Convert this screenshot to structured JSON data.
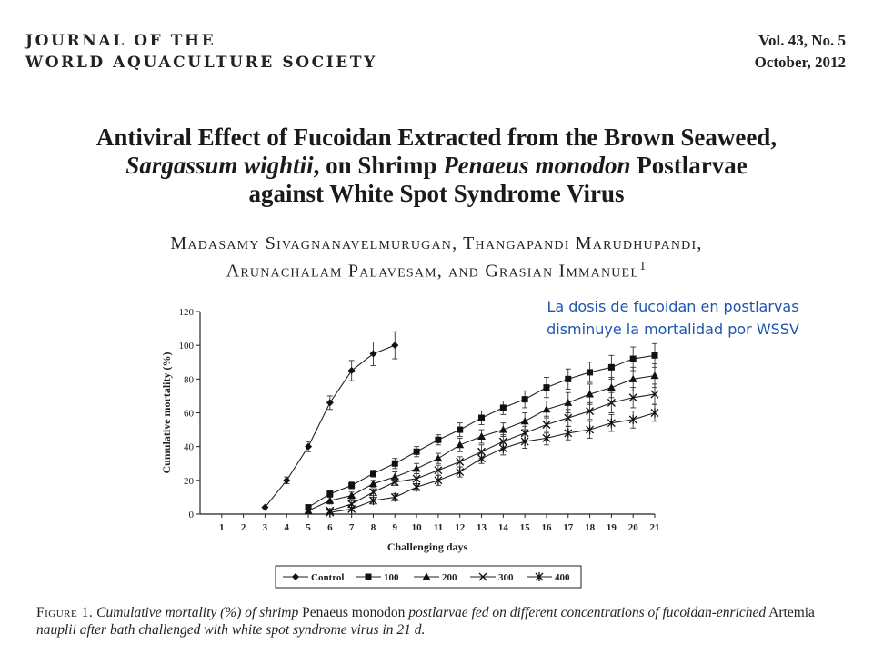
{
  "header": {
    "journal_line1": "JOURNAL OF THE",
    "journal_line2": "WORLD AQUACULTURE SOCIETY",
    "volume": "Vol. 43, No. 5",
    "date": "October, 2012"
  },
  "title": {
    "line1": "Antiviral Effect of Fucoidan Extracted from the Brown Seaweed,",
    "line2_species": "Sargassum wightii",
    "line2_mid": ", on Shrimp ",
    "line2_host": "Penaeus monodon",
    "line2_end": " Postlarvae",
    "line3": "against White Spot Syndrome Virus"
  },
  "authors": {
    "line1": "Madasamy Sivagnanavelmurugan, Thangapandi Marudhupandi,",
    "line2": "Arunachalam Palavesam, and Grasian Immanuel",
    "affiliation_mark": "1"
  },
  "note": {
    "line1": "La dosis de fucoidan en postlarvas",
    "line2": "disminuye la mortalidad por  WSSV"
  },
  "caption": {
    "label": "Figure 1.",
    "part1": "Cumulative mortality (%) of shrimp",
    "species": "Penaeus monodon",
    "part2": "postlarvae fed on different concentrations of fucoidan-enriched",
    "organism": "Artemia",
    "part3": "nauplii after bath challenged with white spot syndrome virus in 21 d."
  },
  "chart_data": {
    "type": "line",
    "title": "",
    "xlabel": "Challenging days",
    "ylabel": "Cumulative mortality (%)",
    "xlim": [
      0,
      21
    ],
    "ylim": [
      0,
      120
    ],
    "xticks": [
      1,
      2,
      3,
      4,
      5,
      6,
      7,
      8,
      9,
      10,
      11,
      12,
      13,
      14,
      15,
      16,
      17,
      18,
      19,
      20,
      21
    ],
    "yticks": [
      0,
      20,
      40,
      60,
      80,
      100,
      120
    ],
    "legend_position": "bottom",
    "series": [
      {
        "name": "Control",
        "marker": "diamond",
        "x": [
          3,
          4,
          5,
          6,
          7,
          8,
          9
        ],
        "values": [
          4,
          20,
          40,
          66,
          85,
          95,
          100
        ],
        "err": [
          0,
          2,
          3,
          4,
          6,
          7,
          8
        ]
      },
      {
        "name": "100",
        "marker": "square",
        "x": [
          5,
          6,
          7,
          8,
          9,
          10,
          11,
          12,
          13,
          14,
          15,
          16,
          17,
          18,
          19,
          20,
          21
        ],
        "values": [
          4,
          12,
          17,
          24,
          30,
          37,
          44,
          50,
          57,
          63,
          68,
          75,
          80,
          84,
          87,
          92,
          94
        ],
        "err": [
          0,
          2,
          2,
          2,
          3,
          3,
          3,
          4,
          4,
          4,
          5,
          6,
          6,
          6,
          7,
          7,
          7
        ]
      },
      {
        "name": "200",
        "marker": "triangle",
        "x": [
          5,
          6,
          7,
          8,
          9,
          10,
          11,
          12,
          13,
          14,
          15,
          16,
          17,
          18,
          19,
          20,
          21
        ],
        "values": [
          2,
          8,
          11,
          18,
          22,
          27,
          33,
          41,
          46,
          50,
          55,
          62,
          66,
          71,
          75,
          80,
          82
        ],
        "err": [
          0,
          2,
          2,
          2,
          3,
          3,
          3,
          4,
          4,
          4,
          5,
          5,
          6,
          6,
          6,
          7,
          7
        ]
      },
      {
        "name": "300",
        "marker": "x",
        "x": [
          6,
          7,
          8,
          9,
          10,
          11,
          12,
          13,
          14,
          15,
          16,
          17,
          18,
          19,
          20,
          21
        ],
        "values": [
          2,
          6,
          13,
          19,
          21,
          26,
          31,
          37,
          43,
          48,
          53,
          57,
          61,
          66,
          69,
          71
        ],
        "err": [
          0,
          2,
          2,
          2,
          3,
          3,
          3,
          4,
          4,
          4,
          5,
          5,
          5,
          6,
          6,
          6
        ]
      },
      {
        "name": "400",
        "marker": "star",
        "x": [
          6,
          7,
          8,
          9,
          10,
          11,
          12,
          13,
          14,
          15,
          16,
          17,
          18,
          19,
          20,
          21
        ],
        "values": [
          1,
          3,
          8,
          10,
          16,
          20,
          25,
          33,
          39,
          43,
          45,
          48,
          50,
          54,
          56,
          60
        ],
        "err": [
          0,
          1,
          2,
          2,
          2,
          3,
          3,
          3,
          4,
          4,
          4,
          4,
          5,
          5,
          5,
          5
        ]
      }
    ]
  }
}
